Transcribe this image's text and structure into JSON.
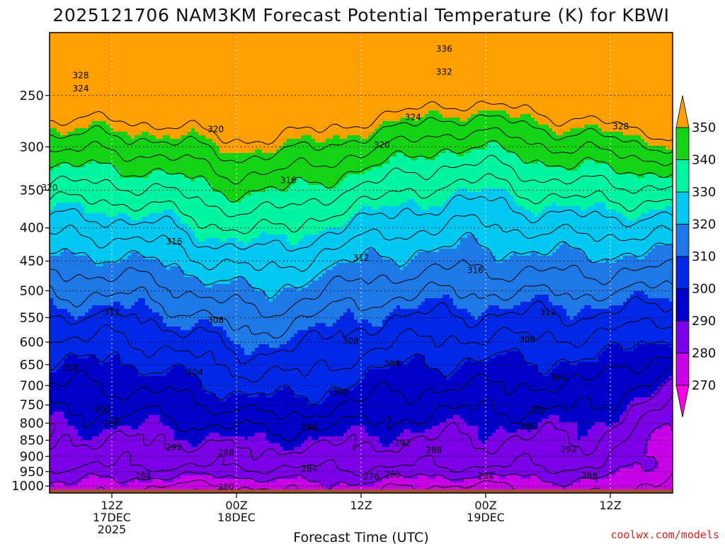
{
  "chart_data": {
    "type": "contour",
    "title": "2025121706 NAM3KM Forecast Potential Temperature (K) for KBWI",
    "xlabel": "Forecast Time (UTC)",
    "ylabel": "",
    "credit": "coolwx.com/models",
    "y_scale": "log",
    "y_inverted": true,
    "ylim": [
      1025,
      200
    ],
    "yticks": [
      250,
      300,
      350,
      400,
      450,
      500,
      550,
      600,
      650,
      700,
      750,
      800,
      850,
      900,
      950,
      1000
    ],
    "xticks": [
      {
        "time": "2025-12-17T12Z",
        "lines": [
          "12Z",
          "17DEC",
          "2025"
        ]
      },
      {
        "time": "2025-12-18T00Z",
        "lines": [
          "00Z",
          "18DEC"
        ]
      },
      {
        "time": "2025-12-18T12Z",
        "lines": [
          "12Z"
        ]
      },
      {
        "time": "2025-12-19T00Z",
        "lines": [
          "00Z",
          "19DEC"
        ]
      },
      {
        "time": "2025-12-19T12Z",
        "lines": [
          "12Z"
        ]
      }
    ],
    "x_range": [
      "2025-12-17T06Z",
      "2025-12-19T18Z"
    ],
    "grid": true,
    "colorbar": {
      "position": "right",
      "levels": [
        270,
        280,
        290,
        300,
        310,
        320,
        330,
        340,
        350
      ],
      "colors": [
        "#ff00e6",
        "#c800e8",
        "#7b00e6",
        "#0000c8",
        "#0028e6",
        "#1e78e6",
        "#00c8f0",
        "#00f5a0",
        "#14d214",
        "#e6ff00",
        "#ffa000"
      ]
    },
    "ground_color": "#a0522d",
    "contour_labels": [
      {
        "value": "336",
        "time": "2025-12-18T20Z",
        "p": 212
      },
      {
        "value": "332",
        "time": "2025-12-18T20Z",
        "p": 230
      },
      {
        "value": "328",
        "time": "2025-12-17T09Z",
        "p": 233
      },
      {
        "value": "324",
        "time": "2025-12-17T09Z",
        "p": 244
      },
      {
        "value": "324",
        "time": "2025-12-18T17Z",
        "p": 270
      },
      {
        "value": "328",
        "time": "2025-12-19T13Z",
        "p": 279
      },
      {
        "value": "320",
        "time": "2025-12-17T22Z",
        "p": 282
      },
      {
        "value": "320",
        "time": "2025-12-18T14Z",
        "p": 298
      },
      {
        "value": "316",
        "time": "2025-12-18T05Z",
        "p": 338
      },
      {
        "value": "320",
        "time": "2025-12-17T06Z",
        "p": 347
      },
      {
        "value": "316",
        "time": "2025-12-17T18Z",
        "p": 420
      },
      {
        "value": "312",
        "time": "2025-12-18T12Z",
        "p": 445
      },
      {
        "value": "316",
        "time": "2025-12-18T23Z",
        "p": 465
      },
      {
        "value": "312",
        "time": "2025-12-17T12Z",
        "p": 540
      },
      {
        "value": "308",
        "time": "2025-12-17T22Z",
        "p": 555
      },
      {
        "value": "312",
        "time": "2025-12-19T06Z",
        "p": 540
      },
      {
        "value": "308",
        "time": "2025-12-18T11Z",
        "p": 598
      },
      {
        "value": "308",
        "time": "2025-12-19T04Z",
        "p": 595
      },
      {
        "value": "308",
        "time": "2025-12-17T08Z",
        "p": 658
      },
      {
        "value": "304",
        "time": "2025-12-17T20Z",
        "p": 668
      },
      {
        "value": "304",
        "time": "2025-12-18T15Z",
        "p": 648
      },
      {
        "value": "304",
        "time": "2025-12-19T07Z",
        "p": 680
      },
      {
        "value": "300",
        "time": "2025-12-18T10Z",
        "p": 716
      },
      {
        "value": "300",
        "time": "2025-12-17T11Z",
        "p": 762
      },
      {
        "value": "300",
        "time": "2025-12-19T05Z",
        "p": 766
      },
      {
        "value": "296",
        "time": "2025-12-17T12Z",
        "p": 800
      },
      {
        "value": "296",
        "time": "2025-12-18T07Z",
        "p": 812
      },
      {
        "value": "296",
        "time": "2025-12-19T04Z",
        "p": 810
      },
      {
        "value": "292",
        "time": "2025-12-17T18Z",
        "p": 872
      },
      {
        "value": "292",
        "time": "2025-12-18T16Z",
        "p": 858
      },
      {
        "value": "292",
        "time": "2025-12-19T08Z",
        "p": 878
      },
      {
        "value": "288",
        "time": "2025-12-17T23Z",
        "p": 888
      },
      {
        "value": "288",
        "time": "2025-12-18T19Z",
        "p": 880
      },
      {
        "value": "284",
        "time": "2025-12-18T07Z",
        "p": 940
      },
      {
        "value": "284",
        "time": "2025-12-17T15Z",
        "p": 965
      },
      {
        "value": "280",
        "time": "2025-12-18T15Z",
        "p": 960
      },
      {
        "value": "276",
        "time": "2025-12-18T13Z",
        "p": 968
      },
      {
        "value": "284",
        "time": "2025-12-19T00Z",
        "p": 966
      },
      {
        "value": "288",
        "time": "2025-12-19T10Z",
        "p": 965
      },
      {
        "value": "280",
        "time": "2025-12-17T23Z",
        "p": 1003
      }
    ]
  }
}
